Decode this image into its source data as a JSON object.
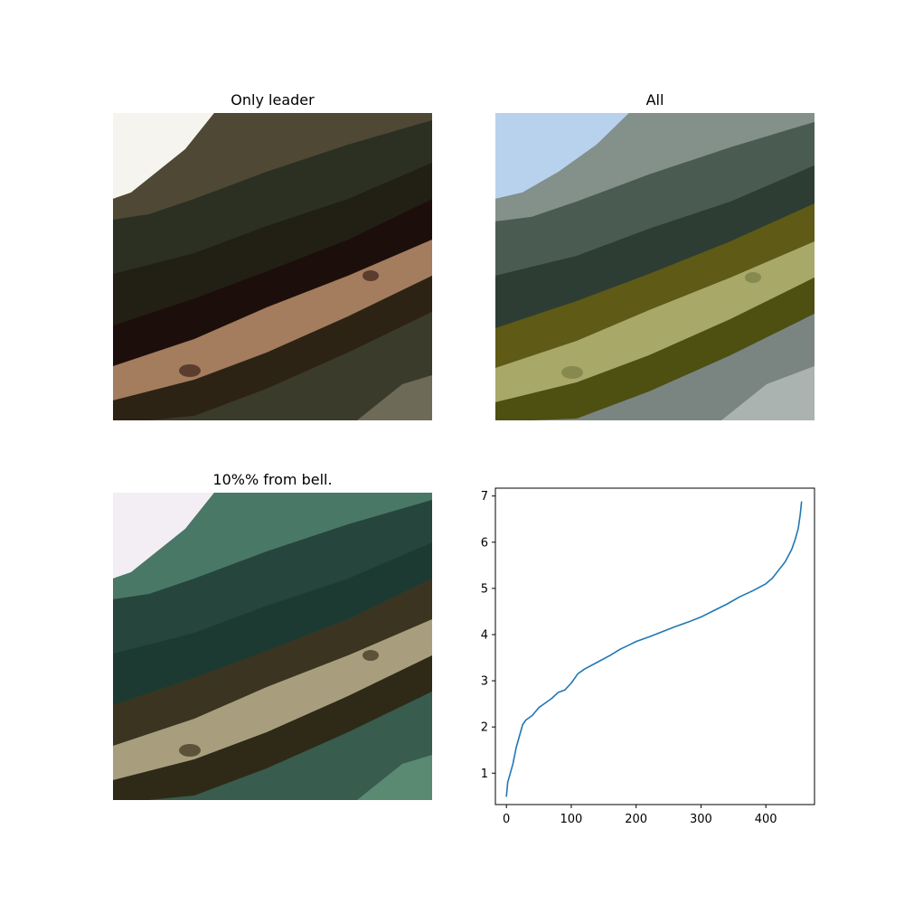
{
  "panels": {
    "top_left": {
      "title": "Only leader"
    },
    "top_right": {
      "title": "All"
    },
    "bottom_left": {
      "title": "10%% from bell."
    }
  },
  "colors": {
    "series_line": "#1f77b4",
    "top_left_palette": [
      "#f6f4ef",
      "#2b3022",
      "#3a3b2b",
      "#4e4834",
      "#221f14",
      "#1c0f0b",
      "#a47c5e",
      "#2d2315",
      "#6d6a57"
    ],
    "top_right_palette": [
      "#b8d2ee",
      "#4a5b52",
      "#84908a",
      "#3d4e44",
      "#2d3d33",
      "#5f5a15",
      "#a8a869",
      "#4d5010",
      "#7a8582"
    ],
    "bottom_left_palette": [
      "#f3eef4",
      "#1d3a32",
      "#4a7866",
      "#2f5448",
      "#26453d",
      "#3b3420",
      "#a89e7d",
      "#2f2a17",
      "#385c4e"
    ]
  },
  "chart_data": {
    "type": "line",
    "title": "",
    "xlabel": "",
    "ylabel": "",
    "xlim": [
      -17,
      475
    ],
    "ylim": [
      0.32,
      7.17
    ],
    "xticks": [
      0,
      100,
      200,
      300,
      400
    ],
    "yticks": [
      1,
      2,
      3,
      4,
      5,
      6,
      7
    ],
    "grid": false,
    "series": [
      {
        "x": [
          0,
          2,
          5,
          10,
          15,
          20,
          25,
          30,
          40,
          50,
          60,
          70,
          80,
          90,
          100,
          110,
          120,
          140,
          160,
          175,
          190,
          200,
          220,
          240,
          260,
          280,
          300,
          320,
          340,
          360,
          380,
          400,
          410,
          420,
          430,
          440,
          445,
          450,
          453,
          455
        ],
        "y": [
          0.5,
          0.8,
          0.95,
          1.2,
          1.55,
          1.8,
          2.05,
          2.15,
          2.25,
          2.42,
          2.52,
          2.62,
          2.75,
          2.8,
          2.95,
          3.15,
          3.25,
          3.4,
          3.55,
          3.68,
          3.78,
          3.85,
          3.95,
          4.06,
          4.17,
          4.27,
          4.38,
          4.52,
          4.66,
          4.82,
          4.95,
          5.1,
          5.22,
          5.4,
          5.58,
          5.85,
          6.05,
          6.3,
          6.6,
          6.87
        ]
      }
    ]
  }
}
